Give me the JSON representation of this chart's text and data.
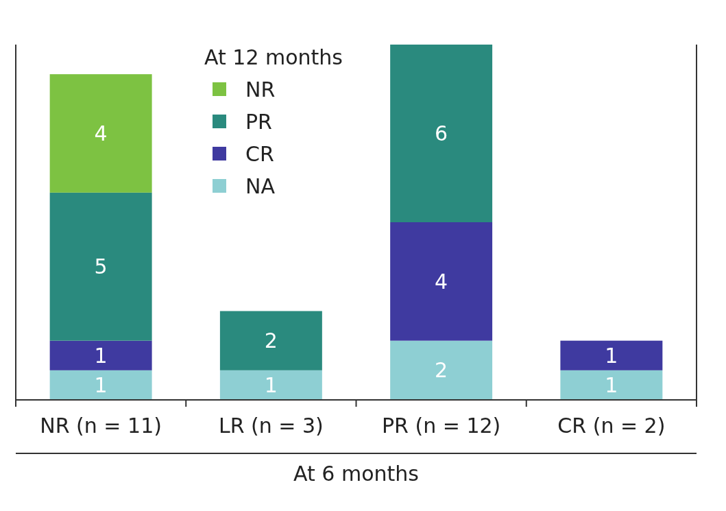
{
  "chart_data": {
    "type": "bar",
    "stacked": true,
    "data_labels": true,
    "legend": "top",
    "legend_title": "At 12 months",
    "xlabel": "At 6 months",
    "categories": [
      "NR (n = 11)",
      "LR (n = 3)",
      "PR (n = 12)",
      "CR (n = 2)"
    ],
    "series": [
      {
        "name": "NA",
        "color": "#8ecfd3",
        "values": [
          1,
          1,
          2,
          1
        ]
      },
      {
        "name": "CR",
        "color": "#3f3aa0",
        "values": [
          1,
          null,
          4,
          1
        ]
      },
      {
        "name": "PR",
        "color": "#2a8a7e",
        "values": [
          5,
          2,
          6,
          null
        ]
      },
      {
        "name": "NR",
        "color": "#7dc242",
        "values": [
          4,
          null,
          null,
          null
        ]
      }
    ]
  }
}
